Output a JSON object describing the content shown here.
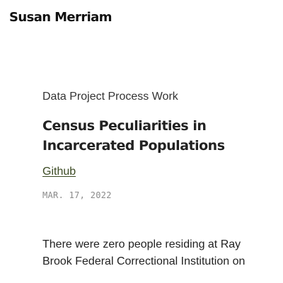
{
  "header": {
    "site_title": "Susan Merriam"
  },
  "article": {
    "category": "Data Project Process Work",
    "title": "Census Peculiarities in Incarcerated Populations",
    "github_link": "Github",
    "date": "MAR. 17, 2022",
    "body_intro": "There were zero people residing at Ray Brook Federal Correctional Institution on"
  },
  "colors": {
    "link": "#3b4a23",
    "date": "#8a8a8a",
    "text": "#222222"
  }
}
